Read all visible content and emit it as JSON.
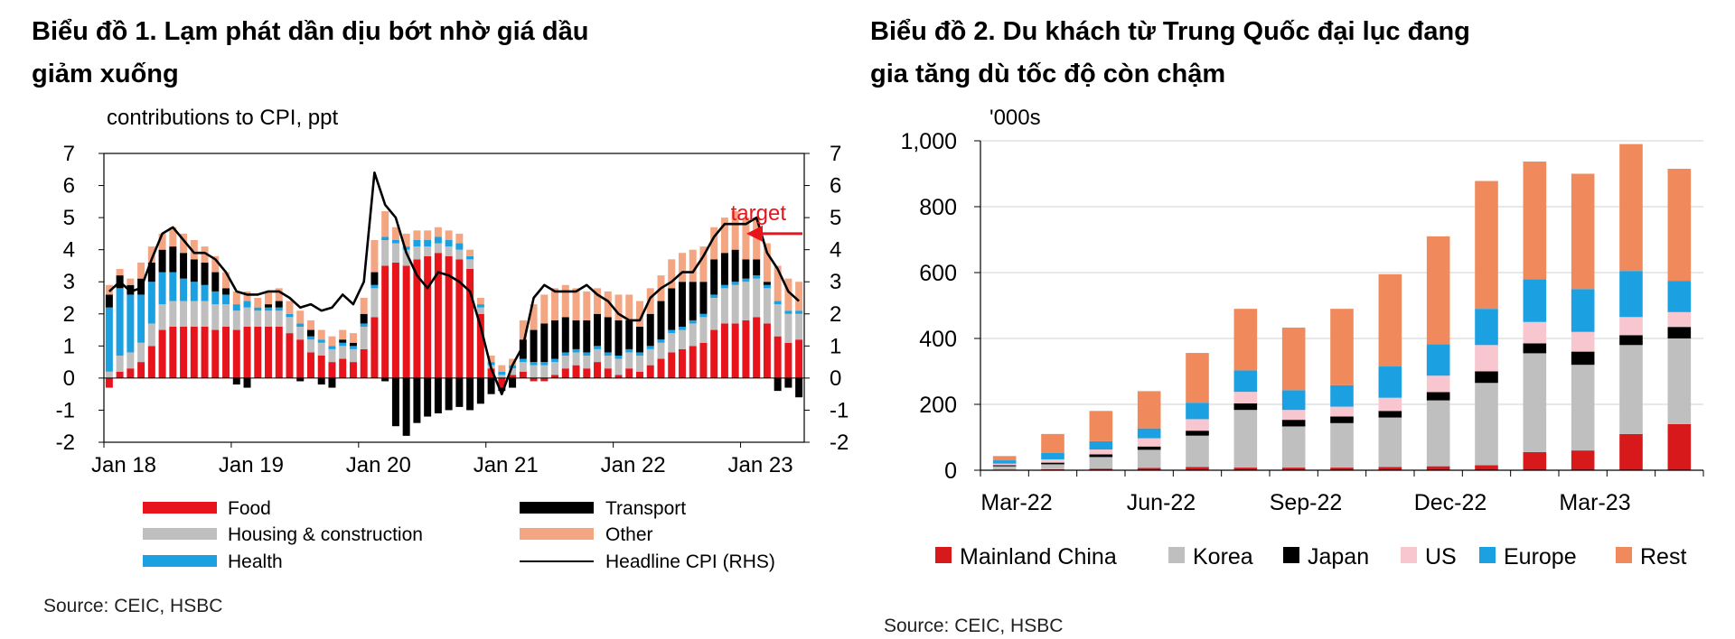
{
  "chart_data": [
    {
      "type": "bar",
      "stacked": true,
      "title": "Biểu đồ 1. Lạm phát dần dịu bớt nhờ giá dầu giảm xuống",
      "title_lines": [
        "Biểu đồ 1. Lạm phát dần dịu bớt nhờ giá dầu",
        "giảm xuống"
      ],
      "ylabel": "contributions to CPI, ppt",
      "ylim": [
        -2,
        7
      ],
      "yticks": [
        "7",
        "6",
        "5",
        "4",
        "3",
        "2",
        "1",
        "0",
        "-1",
        "-2"
      ],
      "rhs_ylim": [
        -2,
        7
      ],
      "rhs_yticks": [
        "7",
        "6",
        "5",
        "4",
        "3",
        "2",
        "1",
        "0",
        "-1",
        "-2"
      ],
      "x_tick_labels": [
        {
          "label": "Jan 18",
          "index": 0
        },
        {
          "label": "Jan 19",
          "index": 12
        },
        {
          "label": "Jan 20",
          "index": 24
        },
        {
          "label": "Jan 21",
          "index": 36
        },
        {
          "label": "Jan 22",
          "index": 48
        },
        {
          "label": "Jan 23",
          "index": 60
        }
      ],
      "x_start": "Jan 18",
      "series": [
        {
          "name": "Food",
          "color": "#e8141c",
          "values": [
            -0.3,
            0.2,
            0.3,
            0.5,
            1.0,
            1.5,
            1.6,
            1.6,
            1.6,
            1.6,
            1.5,
            1.6,
            1.5,
            1.6,
            1.6,
            1.6,
            1.6,
            1.4,
            1.2,
            0.8,
            0.7,
            0.5,
            0.6,
            0.5,
            0.9,
            1.9,
            3.5,
            3.6,
            3.5,
            3.7,
            3.8,
            3.9,
            3.8,
            3.7,
            3.4,
            2.0,
            0.3,
            -0.3,
            0.1,
            0.2,
            -0.1,
            -0.1,
            0.1,
            0.3,
            0.4,
            0.3,
            0.5,
            0.3,
            0.1,
            0.3,
            0.2,
            0.4,
            0.6,
            0.8,
            0.9,
            1.0,
            1.1,
            1.5,
            1.7,
            1.7,
            1.8,
            1.9,
            1.7,
            1.3,
            1.1,
            1.2
          ]
        },
        {
          "name": "Housing & construction",
          "color": "#bfbfbf",
          "values": [
            0.2,
            0.5,
            0.5,
            0.6,
            0.7,
            0.8,
            0.8,
            0.8,
            0.8,
            0.8,
            0.8,
            0.7,
            0.6,
            0.6,
            0.5,
            0.5,
            0.5,
            0.5,
            0.4,
            0.4,
            0.4,
            0.4,
            0.4,
            0.4,
            0.7,
            0.9,
            0.8,
            0.6,
            0.5,
            0.4,
            0.3,
            0.3,
            0.3,
            0.3,
            0.3,
            0.2,
            0.1,
            0.1,
            0.2,
            0.3,
            0.4,
            0.4,
            0.4,
            0.4,
            0.4,
            0.4,
            0.4,
            0.4,
            0.5,
            0.5,
            0.5,
            0.5,
            0.5,
            0.6,
            0.6,
            0.7,
            0.8,
            1.0,
            1.1,
            1.2,
            1.2,
            1.2,
            1.1,
            1.0,
            0.9,
            0.8
          ]
        },
        {
          "name": "Health",
          "color": "#1ba1e2",
          "values": [
            2.0,
            2.1,
            1.8,
            1.5,
            1.3,
            1.0,
            0.9,
            0.7,
            0.6,
            0.5,
            0.4,
            0.3,
            0.2,
            0.2,
            0.1,
            0.1,
            0.1,
            0.1,
            0.1,
            0.1,
            0.1,
            0.1,
            0.1,
            0.1,
            0.1,
            0.1,
            0.1,
            0.1,
            0.1,
            0.2,
            0.2,
            0.2,
            0.2,
            0.2,
            0.1,
            0.1,
            0.1,
            0.1,
            0.1,
            0.1,
            0.1,
            0.1,
            0.1,
            0.1,
            0.1,
            0.1,
            0.1,
            0.1,
            0.1,
            0.1,
            0.1,
            0.1,
            0.1,
            0.1,
            0.1,
            0.1,
            0.1,
            0.1,
            0.1,
            0.1,
            0.1,
            0.1,
            0.1,
            0.1,
            0.1,
            0.1
          ]
        },
        {
          "name": "Transport",
          "color": "#000000",
          "values": [
            0.4,
            0.4,
            0.3,
            0.5,
            0.6,
            0.7,
            0.8,
            0.8,
            0.7,
            0.7,
            0.6,
            0.2,
            -0.2,
            -0.3,
            0.0,
            0.1,
            0.2,
            0.0,
            -0.1,
            0.2,
            -0.2,
            -0.3,
            0.1,
            0.1,
            0.3,
            0.4,
            -0.1,
            -1.5,
            -1.8,
            -1.4,
            -1.2,
            -1.1,
            -1.0,
            -0.9,
            -1.0,
            -0.8,
            -0.5,
            -0.1,
            -0.3,
            0.6,
            1.0,
            1.2,
            1.2,
            1.1,
            0.9,
            1.0,
            1.0,
            1.1,
            1.1,
            0.9,
            0.8,
            1.0,
            1.2,
            1.3,
            1.4,
            1.2,
            1.0,
            1.1,
            1.0,
            1.0,
            0.6,
            0.5,
            0.1,
            -0.4,
            -0.3,
            -0.6
          ]
        },
        {
          "name": "Other",
          "color": "#f4a582",
          "values": [
            0.3,
            0.2,
            0.2,
            0.5,
            0.5,
            0.5,
            0.6,
            0.6,
            0.6,
            0.5,
            0.5,
            0.5,
            0.4,
            0.3,
            0.3,
            0.4,
            0.4,
            0.4,
            0.4,
            0.3,
            0.3,
            0.3,
            0.3,
            0.3,
            0.5,
            1.0,
            0.8,
            0.4,
            0.4,
            0.3,
            0.3,
            0.3,
            0.3,
            0.3,
            0.2,
            0.2,
            0.2,
            0.2,
            0.2,
            0.6,
            0.8,
            0.9,
            1.0,
            1.0,
            1.0,
            0.9,
            0.8,
            0.8,
            0.8,
            0.8,
            0.8,
            0.8,
            0.8,
            0.9,
            0.9,
            1.0,
            1.1,
            1.0,
            1.1,
            1.2,
            1.3,
            1.3,
            1.2,
            1.1,
            1.0,
            0.9
          ]
        }
      ],
      "line_series": {
        "name": "Headline CPI (RHS)",
        "color": "#000000",
        "values": [
          2.7,
          3.0,
          2.7,
          2.8,
          3.7,
          4.5,
          4.7,
          4.3,
          3.9,
          3.9,
          3.7,
          3.3,
          2.7,
          2.6,
          2.6,
          2.7,
          2.7,
          2.5,
          2.2,
          2.3,
          2.1,
          2.2,
          2.6,
          2.3,
          3.0,
          6.4,
          5.4,
          5.0,
          3.9,
          3.2,
          2.8,
          3.3,
          3.2,
          3.0,
          2.7,
          1.6,
          0.3,
          -0.5,
          0.4,
          1.0,
          2.5,
          2.9,
          2.7,
          2.7,
          2.7,
          2.9,
          2.6,
          2.4,
          2.0,
          1.8,
          1.8,
          2.5,
          2.8,
          3.0,
          3.3,
          3.3,
          3.8,
          4.4,
          4.8,
          4.8,
          4.8,
          5.0,
          3.9,
          3.4,
          2.7,
          2.4
        ]
      },
      "annotation": {
        "text": "target",
        "color": "#e8141c",
        "value": 4.5
      },
      "legend": [
        {
          "name": "Food",
          "color": "#e8141c",
          "kind": "bar"
        },
        {
          "name": "Transport",
          "color": "#000000",
          "kind": "bar"
        },
        {
          "name": "Housing & construction",
          "color": "#bfbfbf",
          "kind": "bar"
        },
        {
          "name": "Other",
          "color": "#f4a582",
          "kind": "bar"
        },
        {
          "name": "Health",
          "color": "#1ba1e2",
          "kind": "bar"
        },
        {
          "name": "Headline CPI (RHS)",
          "color": "#000000",
          "kind": "line"
        }
      ],
      "source": "Source: CEIC, HSBC"
    },
    {
      "type": "bar",
      "stacked": true,
      "title": "Biểu đồ 2. Du khách từ Trung Quốc đại lục đang gia tăng dù tốc độ còn chậm",
      "title_lines": [
        "Biểu đồ 2. Du khách từ Trung Quốc đại lục đang",
        "gia tăng dù tốc độ còn chậm"
      ],
      "ylabel": "'000s",
      "ylim": [
        0,
        1000
      ],
      "yticks": [
        "1,000",
        "800",
        "600",
        "400",
        "200",
        "0"
      ],
      "categories": [
        "Mar-22",
        "Apr-22",
        "May-22",
        "Jun-22",
        "Jul-22",
        "Aug-22",
        "Sep-22",
        "Oct-22",
        "Nov-22",
        "Dec-22",
        "Jan-23",
        "Feb-23",
        "Mar-23",
        "Apr-23",
        "May-23"
      ],
      "x_tick_labels": [
        "Mar-22",
        "Jun-22",
        "Sep-22",
        "Dec-22",
        "Mar-23"
      ],
      "series": [
        {
          "name": "Mainland China",
          "color": "#d7191c",
          "values": [
            2,
            3,
            5,
            7,
            10,
            8,
            8,
            8,
            10,
            12,
            15,
            55,
            60,
            110,
            140
          ]
        },
        {
          "name": "Korea",
          "color": "#bfbfbf",
          "values": [
            10,
            15,
            35,
            55,
            95,
            175,
            125,
            135,
            150,
            200,
            250,
            300,
            260,
            270,
            260
          ]
        },
        {
          "name": "Japan",
          "color": "#000000",
          "values": [
            3,
            5,
            8,
            10,
            15,
            20,
            20,
            20,
            20,
            25,
            35,
            30,
            40,
            30,
            35
          ]
        },
        {
          "name": "US",
          "color": "#f7c6cf",
          "values": [
            5,
            10,
            15,
            25,
            35,
            35,
            30,
            30,
            40,
            50,
            80,
            65,
            60,
            55,
            45
          ]
        },
        {
          "name": "Europe",
          "color": "#1ba1e2",
          "values": [
            10,
            20,
            25,
            30,
            50,
            65,
            60,
            65,
            95,
            95,
            110,
            130,
            130,
            140,
            95
          ]
        },
        {
          "name": "Rest",
          "color": "#f08a5d",
          "values": [
            13,
            57,
            92,
            113,
            151,
            187,
            190,
            232,
            280,
            328,
            388,
            357,
            350,
            385,
            340
          ]
        }
      ],
      "source": "Source: CEIC, HSBC"
    }
  ]
}
